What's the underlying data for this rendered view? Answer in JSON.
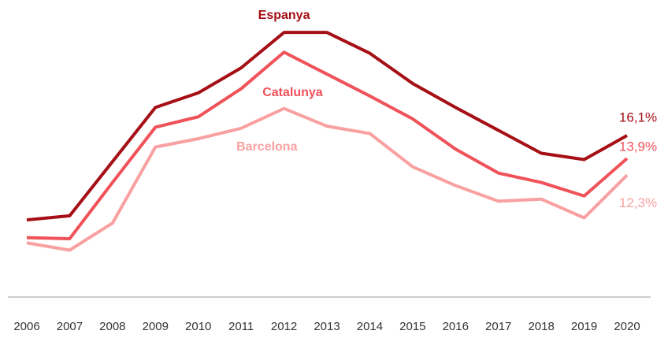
{
  "chart_data": {
    "type": "line",
    "categories": [
      "2006",
      "2007",
      "2008",
      "2009",
      "2010",
      "2011",
      "2012",
      "2013",
      "2014",
      "2015",
      "2016",
      "2017",
      "2018",
      "2019",
      "2020"
    ],
    "series": [
      {
        "name": "Espanya",
        "color": "#a50f15",
        "values": [
          8.0,
          8.4,
          13.6,
          18.8,
          20.2,
          22.6,
          26.0,
          26.0,
          24.0,
          21.1,
          18.8,
          16.6,
          14.4,
          13.8,
          16.1
        ],
        "value_labels": [
          null,
          null,
          null,
          null,
          null,
          null,
          null,
          null,
          null,
          null,
          null,
          null,
          null,
          null,
          "16,1%"
        ]
      },
      {
        "name": "Catalunya",
        "color": "#f0525a",
        "values": [
          6.3,
          6.2,
          11.6,
          16.9,
          17.9,
          20.6,
          24.1,
          22.0,
          19.9,
          17.7,
          14.8,
          12.5,
          11.6,
          10.3,
          13.9
        ],
        "value_labels": [
          null,
          null,
          null,
          null,
          null,
          null,
          null,
          null,
          null,
          null,
          null,
          null,
          null,
          null,
          "13,9%"
        ]
      },
      {
        "name": "Barcelona",
        "color": "#f9a0a0",
        "values": [
          5.8,
          5.1,
          7.7,
          15.0,
          15.8,
          16.8,
          18.7,
          17.0,
          16.3,
          13.1,
          11.3,
          9.8,
          10.0,
          8.2,
          12.3
        ],
        "value_labels": [
          null,
          null,
          null,
          null,
          null,
          null,
          null,
          null,
          null,
          null,
          null,
          null,
          null,
          null,
          "12,3%"
        ]
      }
    ],
    "ylim": [
      0.6,
      27.6
    ]
  }
}
